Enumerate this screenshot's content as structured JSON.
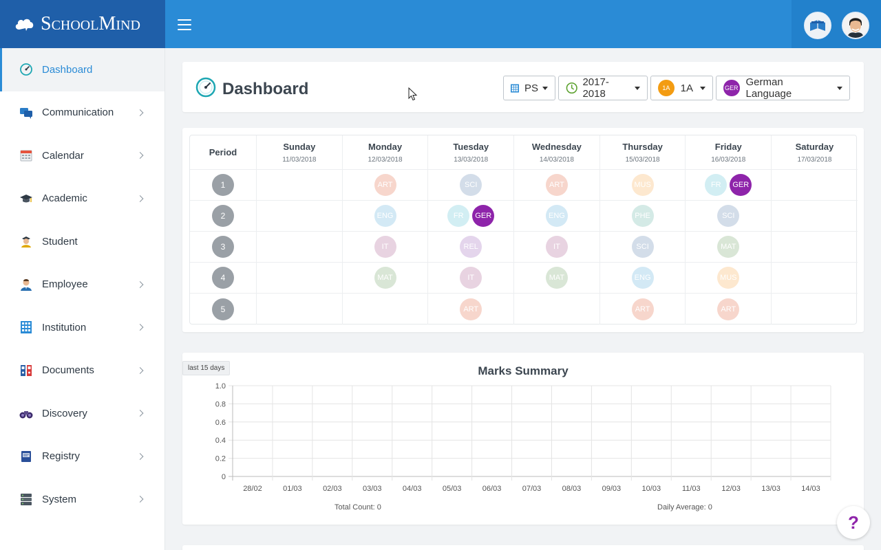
{
  "brand": {
    "name": "SchoolMind"
  },
  "sidebar": {
    "items": [
      {
        "label": "Dashboard",
        "icon": "dashboard-gauge-icon",
        "active": true,
        "chevron": false
      },
      {
        "label": "Communication",
        "icon": "chat-bubbles-icon",
        "chevron": true
      },
      {
        "label": "Calendar",
        "icon": "calendar-icon",
        "chevron": true
      },
      {
        "label": "Academic",
        "icon": "graduation-cap-icon",
        "chevron": true
      },
      {
        "label": "Student",
        "icon": "student-icon",
        "chevron": false
      },
      {
        "label": "Employee",
        "icon": "employee-icon",
        "chevron": true
      },
      {
        "label": "Institution",
        "icon": "building-icon",
        "chevron": true
      },
      {
        "label": "Documents",
        "icon": "binders-icon",
        "chevron": true
      },
      {
        "label": "Discovery",
        "icon": "binoculars-icon",
        "chevron": true
      },
      {
        "label": "Registry",
        "icon": "registry-book-icon",
        "chevron": true
      },
      {
        "label": "System",
        "icon": "server-icon",
        "chevron": true
      }
    ]
  },
  "header": {
    "title": "Dashboard",
    "filters": {
      "school": "PS",
      "year": "2017-2018",
      "class": {
        "badge": "1A",
        "label": "1A",
        "color": "#f39c12"
      },
      "subject": {
        "badge": "GER",
        "label": "German Language",
        "color": "#8e24aa"
      }
    }
  },
  "timetable": {
    "period_header": "Period",
    "days": [
      {
        "name": "Sunday",
        "date": "11/03/2018"
      },
      {
        "name": "Monday",
        "date": "12/03/2018"
      },
      {
        "name": "Tuesday",
        "date": "13/03/2018"
      },
      {
        "name": "Wednesday",
        "date": "14/03/2018"
      },
      {
        "name": "Thursday",
        "date": "15/03/2018"
      },
      {
        "name": "Friday",
        "date": "16/03/2018"
      },
      {
        "name": "Saturday",
        "date": "17/03/2018"
      }
    ],
    "periods": [
      {
        "num": "1",
        "cells": [
          [],
          [
            "ART"
          ],
          [
            "SCI"
          ],
          [
            "ART"
          ],
          [
            "MUS"
          ],
          [
            "FR",
            "GER"
          ],
          []
        ]
      },
      {
        "num": "2",
        "cells": [
          [],
          [
            "ENG"
          ],
          [
            "FR",
            "GER"
          ],
          [
            "ENG"
          ],
          [
            "PHE"
          ],
          [
            "SCI"
          ],
          []
        ]
      },
      {
        "num": "3",
        "cells": [
          [],
          [
            "IT"
          ],
          [
            "REL"
          ],
          [
            "IT"
          ],
          [
            "SCI"
          ],
          [
            "MAT"
          ],
          []
        ]
      },
      {
        "num": "4",
        "cells": [
          [],
          [
            "MAT"
          ],
          [
            "IT"
          ],
          [
            "MAT"
          ],
          [
            "ENG"
          ],
          [
            "MUS"
          ],
          []
        ]
      },
      {
        "num": "5",
        "cells": [
          [],
          [],
          [
            "ART"
          ],
          [],
          [
            "ART"
          ],
          [
            "ART"
          ],
          []
        ]
      }
    ],
    "subject_colors": {
      "ART": "#f7d6cc",
      "SCI": "#d3dde9",
      "MUS": "#fde8cf",
      "FR": "#d2eef3",
      "GER": "#8e24aa",
      "ENG": "#d3e9f5",
      "PHE": "#d4eae6",
      "IT": "#e8d3e1",
      "REL": "#e4d5ec",
      "MAT": "#d9e6d6"
    },
    "subject_text": {
      "GER": "#ffffff",
      "default": "#ffffff"
    }
  },
  "marks": {
    "range_tag": "last 15 days",
    "total_count_label": "Total Count: 0",
    "daily_average_label": "Daily Average: 0"
  },
  "chart_data": {
    "type": "line",
    "title": "Marks Summary",
    "categories": [
      "28/02",
      "01/03",
      "02/03",
      "03/03",
      "04/03",
      "05/03",
      "06/03",
      "07/03",
      "08/03",
      "09/03",
      "10/03",
      "11/03",
      "12/03",
      "13/03",
      "14/03"
    ],
    "series": [],
    "yticks": [
      "1.0",
      "0.8",
      "0.6",
      "0.4",
      "0.2",
      "0"
    ],
    "ylim": [
      0,
      1
    ],
    "grid": true
  },
  "help": {
    "label": "?"
  }
}
